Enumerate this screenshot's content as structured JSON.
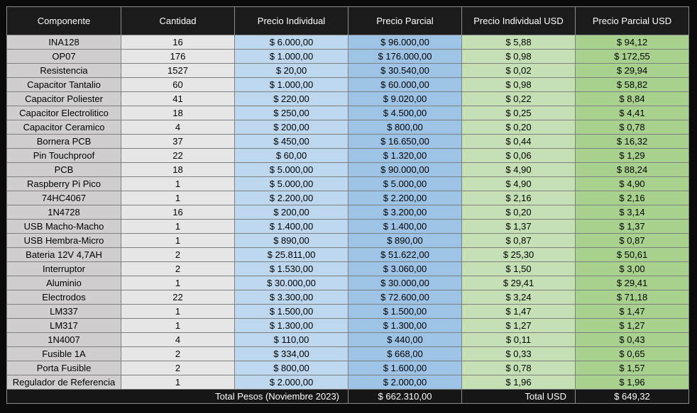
{
  "headers": [
    "Componente",
    "Cantidad",
    "Precio Individual",
    "Precio Parcial",
    "Precio Individual USD",
    "Precio Parcial USD"
  ],
  "rows": [
    [
      "INA128",
      "16",
      "$ 6.000,00",
      "$ 96.000,00",
      "$ 5,88",
      "$ 94,12"
    ],
    [
      "OP07",
      "176",
      "$ 1.000,00",
      "$ 176.000,00",
      "$ 0,98",
      "$ 172,55"
    ],
    [
      "Resistencia",
      "1527",
      "$ 20,00",
      "$ 30.540,00",
      "$ 0,02",
      "$ 29,94"
    ],
    [
      "Capacitor Tantalio",
      "60",
      "$ 1.000,00",
      "$ 60.000,00",
      "$ 0,98",
      "$ 58,82"
    ],
    [
      "Capacitor Poliester",
      "41",
      "$ 220,00",
      "$ 9.020,00",
      "$ 0,22",
      "$ 8,84"
    ],
    [
      "Capacitor Electrolitico",
      "18",
      "$ 250,00",
      "$ 4.500,00",
      "$ 0,25",
      "$ 4,41"
    ],
    [
      "Capacitor Ceramico",
      "4",
      "$ 200,00",
      "$ 800,00",
      "$ 0,20",
      "$ 0,78"
    ],
    [
      "Bornera PCB",
      "37",
      "$ 450,00",
      "$ 16.650,00",
      "$ 0,44",
      "$ 16,32"
    ],
    [
      "Pin Touchproof",
      "22",
      "$ 60,00",
      "$ 1.320,00",
      "$ 0,06",
      "$ 1,29"
    ],
    [
      "PCB",
      "18",
      "$ 5.000,00",
      "$ 90.000,00",
      "$ 4,90",
      "$ 88,24"
    ],
    [
      "Raspberry Pi Pico",
      "1",
      "$ 5.000,00",
      "$ 5.000,00",
      "$ 4,90",
      "$ 4,90"
    ],
    [
      "74HC4067",
      "1",
      "$ 2.200,00",
      "$ 2.200,00",
      "$ 2,16",
      "$ 2,16"
    ],
    [
      "1N4728",
      "16",
      "$ 200,00",
      "$ 3.200,00",
      "$ 0,20",
      "$ 3,14"
    ],
    [
      "USB Macho-Macho",
      "1",
      "$ 1.400,00",
      "$ 1.400,00",
      "$ 1,37",
      "$ 1,37"
    ],
    [
      "USB Hembra-Micro",
      "1",
      "$ 890,00",
      "$ 890,00",
      "$ 0,87",
      "$ 0,87"
    ],
    [
      "Bateria 12V 4,7AH",
      "2",
      "$ 25.811,00",
      "$ 51.622,00",
      "$ 25,30",
      "$ 50,61"
    ],
    [
      "Interruptor",
      "2",
      "$ 1.530,00",
      "$ 3.060,00",
      "$ 1,50",
      "$ 3,00"
    ],
    [
      "Aluminio",
      "1",
      "$ 30.000,00",
      "$ 30.000,00",
      "$ 29,41",
      "$ 29,41"
    ],
    [
      "Electrodos",
      "22",
      "$ 3.300,00",
      "$ 72.600,00",
      "$ 3,24",
      "$ 71,18"
    ],
    [
      "LM337",
      "1",
      "$ 1.500,00",
      "$ 1.500,00",
      "$ 1,47",
      "$ 1,47"
    ],
    [
      "LM317",
      "1",
      "$ 1.300,00",
      "$ 1.300,00",
      "$ 1,27",
      "$ 1,27"
    ],
    [
      "1N4007",
      "4",
      "$ 110,00",
      "$ 440,00",
      "$ 0,11",
      "$ 0,43"
    ],
    [
      "Fusible 1A",
      "2",
      "$ 334,00",
      "$ 668,00",
      "$ 0,33",
      "$ 0,65"
    ],
    [
      "Porta Fusible",
      "2",
      "$ 800,00",
      "$ 1.600,00",
      "$ 0,78",
      "$ 1,57"
    ],
    [
      "Regulador de Referencia",
      "1",
      "$ 2.000,00",
      "$ 2.000,00",
      "$ 1,96",
      "$ 1,96"
    ]
  ],
  "totals": {
    "pesos_label": "Total Pesos (Noviembre 2023)",
    "pesos_value": "$ 662.310,00",
    "usd_label": "Total USD",
    "usd_value": "$ 649,32"
  },
  "colors": {
    "header_bg": "#1b1b1b",
    "col_componente": "#d0cece",
    "col_cantidad": "#e7e6e6",
    "col_precio_individual": "#bdd7ee",
    "col_precio_parcial": "#9dc3e6",
    "col_precio_individual_usd": "#c5e0b4",
    "col_precio_parcial_usd": "#a9d18e"
  }
}
